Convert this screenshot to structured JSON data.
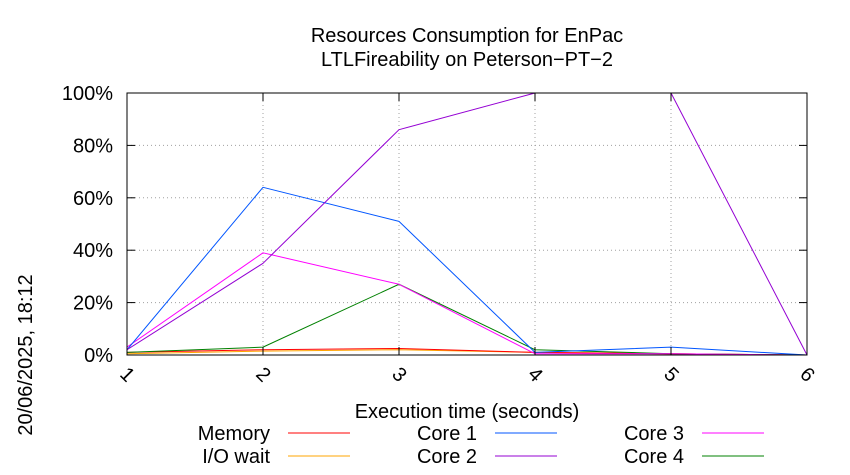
{
  "chart_data": {
    "type": "line",
    "title": "Resources Consumption for EnPac",
    "subtitle": "LTLFireability on Peterson−PT−2",
    "xlabel": "Execution time (seconds)",
    "ylabel": "",
    "side_label": "20/06/2025, 18:12",
    "xlim": [
      1,
      6
    ],
    "ylim": [
      0,
      100
    ],
    "x_ticks": [
      1,
      2,
      3,
      4,
      5,
      6
    ],
    "y_ticks": [
      0,
      20,
      40,
      60,
      80,
      100
    ],
    "y_tick_suffix": "%",
    "grid": true,
    "legend_position": "bottom",
    "x": [
      1,
      2,
      3,
      4,
      5,
      6
    ],
    "series": [
      {
        "name": "Memory",
        "color": "#ff0000",
        "values": [
          1,
          2,
          2.5,
          1,
          0.5,
          0
        ]
      },
      {
        "name": "I/O wait",
        "color": "#ffa500",
        "values": [
          0.5,
          1.5,
          2,
          1,
          0.5,
          0
        ]
      },
      {
        "name": "Core 1",
        "color": "#0055ff",
        "values": [
          2,
          64,
          51,
          1,
          3,
          0
        ]
      },
      {
        "name": "Core 2",
        "color": "#9400d3",
        "values": [
          2,
          35,
          86,
          100,
          100,
          0
        ]
      },
      {
        "name": "Core 3",
        "color": "#ff00ff",
        "values": [
          3,
          39,
          27,
          0.5,
          0.5,
          0
        ]
      },
      {
        "name": "Core 4",
        "color": "#008000",
        "values": [
          1,
          3,
          27,
          2,
          0.5,
          0
        ]
      }
    ]
  }
}
